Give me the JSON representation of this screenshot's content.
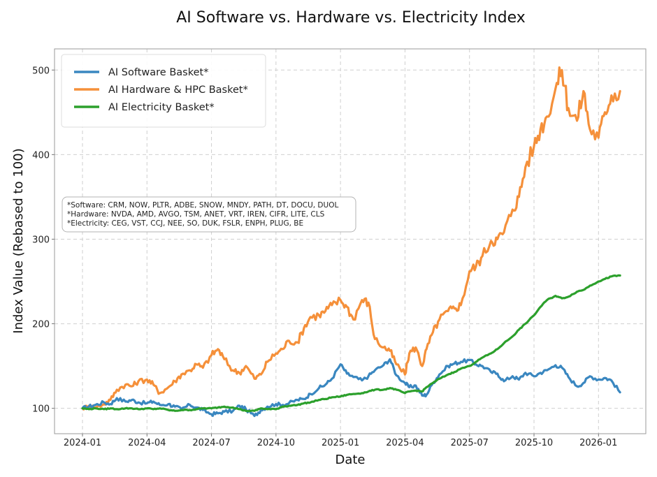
{
  "chart_data": {
    "type": "line",
    "title": "AI Software vs. Hardware vs. Electricity Index",
    "xlabel": "Date",
    "ylabel": "Index Value (Rebased to 100)",
    "x_unit": "months since 2024-01-01",
    "xlim": [
      -1.3,
      26.2
    ],
    "ylim": [
      70,
      525
    ],
    "grid": true,
    "legend_position": "top-left",
    "x_ticks": [
      {
        "value": 0,
        "label": "2024-01"
      },
      {
        "value": 3,
        "label": "2024-04"
      },
      {
        "value": 6,
        "label": "2024-07"
      },
      {
        "value": 9,
        "label": "2024-10"
      },
      {
        "value": 12,
        "label": "2025-01"
      },
      {
        "value": 15,
        "label": "2025-04"
      },
      {
        "value": 18,
        "label": "2025-07"
      },
      {
        "value": 21,
        "label": "2025-10"
      },
      {
        "value": 24,
        "label": "2026-01"
      }
    ],
    "y_ticks": [
      {
        "value": 100,
        "label": "100"
      },
      {
        "value": 200,
        "label": "200"
      },
      {
        "value": 300,
        "label": "300"
      },
      {
        "value": 400,
        "label": "400"
      },
      {
        "value": 500,
        "label": "500"
      }
    ],
    "annotation": [
      "*Software: CRM, NOW, PLTR, ADBE, SNOW, MNDY, PATH, DT, DOCU, DUOL",
      "*Hardware: NVDA, AMD, AVGO, TSM, ANET, VRT, IREN, CIFR, LITE, CLS",
      "*Electricity: CEG, VST, CCJ, NEE, SO, DUK, FSLR, ENPH, PLUG, BE"
    ],
    "series": [
      {
        "name": "AI Software Basket*",
        "color": "#3a87c0",
        "x": [
          0,
          0.3,
          0.6,
          1.0,
          1.3,
          1.6,
          2.0,
          2.3,
          2.6,
          3.0,
          3.3,
          3.6,
          4.0,
          4.3,
          4.6,
          5.0,
          5.3,
          5.6,
          6.0,
          6.3,
          6.6,
          7.0,
          7.3,
          7.6,
          8.0,
          8.3,
          8.6,
          9.0,
          9.3,
          9.6,
          10.0,
          10.3,
          10.6,
          11.0,
          11.3,
          11.6,
          12.0,
          12.3,
          12.6,
          13.0,
          13.3,
          13.6,
          14.0,
          14.3,
          14.6,
          15.0,
          15.2,
          15.5,
          15.8,
          16.0,
          16.3,
          16.6,
          17.0,
          17.3,
          17.6,
          18.0,
          18.3,
          18.6,
          19.0,
          19.3,
          19.6,
          20.0,
          20.3,
          20.6,
          21.0,
          21.3,
          21.6,
          22.0,
          22.3,
          22.6,
          23.0,
          23.3,
          23.6,
          24.0,
          24.3,
          24.6
        ],
        "values": [
          100,
          102,
          104,
          107,
          105,
          112,
          108,
          110,
          107,
          106,
          108,
          104,
          105,
          102,
          99,
          104,
          101,
          98,
          93,
          94,
          96,
          97,
          103,
          99,
          91,
          98,
          102,
          105,
          104,
          106,
          110,
          111,
          117,
          124,
          128,
          135,
          152,
          141,
          137,
          133,
          138,
          145,
          151,
          158,
          139,
          130,
          125,
          127,
          115,
          116,
          130,
          140,
          150,
          153,
          155,
          157,
          152,
          150,
          143,
          141,
          132,
          138,
          134,
          142,
          138,
          142,
          145,
          151,
          148,
          137,
          126,
          130,
          138,
          134,
          136,
          133
        ],
        "values_end": 119
      },
      {
        "name": "AI Hardware & HPC Basket*",
        "color": "#f5903a",
        "x": [
          0,
          0.3,
          0.6,
          1.0,
          1.3,
          1.6,
          2.0,
          2.3,
          2.6,
          3.0,
          3.3,
          3.6,
          4.0,
          4.3,
          4.6,
          5.0,
          5.3,
          5.6,
          6.0,
          6.3,
          6.6,
          7.0,
          7.3,
          7.6,
          8.0,
          8.3,
          8.6,
          9.0,
          9.3,
          9.6,
          10.0,
          10.3,
          10.6,
          11.0,
          11.3,
          11.6,
          12.0,
          12.3,
          12.6,
          13.0,
          13.3,
          13.6,
          14.0,
          14.3,
          14.6,
          15.0,
          15.2,
          15.5,
          15.8,
          16.0,
          16.3,
          16.6,
          17.0,
          17.3,
          17.6,
          18.0,
          18.3,
          18.6,
          19.0,
          19.3,
          19.6,
          20.0,
          20.3,
          20.6,
          21.0,
          21.3,
          21.6,
          22.0,
          22.3,
          22.6,
          23.0,
          23.3,
          23.6,
          24.0,
          24.3,
          24.6
        ],
        "values": [
          100,
          103,
          101,
          105,
          110,
          122,
          128,
          126,
          132,
          134,
          128,
          118,
          125,
          132,
          140,
          145,
          152,
          148,
          163,
          170,
          158,
          145,
          142,
          150,
          135,
          140,
          155,
          165,
          170,
          180,
          178,
          195,
          208,
          210,
          215,
          222,
          228,
          220,
          205,
          228,
          225,
          182,
          172,
          168,
          152,
          140,
          165,
          172,
          150,
          170,
          190,
          205,
          215,
          218,
          222,
          262,
          268,
          280,
          298,
          300,
          308,
          335,
          350,
          385,
          410,
          430,
          445,
          478,
          500,
          455,
          440,
          475,
          430,
          420,
          450,
          470
        ],
        "values_end": 475
      },
      {
        "name": "AI Electricity Basket*",
        "color": "#2ca02c",
        "x": [
          0,
          0.3,
          0.6,
          1.0,
          1.3,
          1.6,
          2.0,
          2.3,
          2.6,
          3.0,
          3.3,
          3.6,
          4.0,
          4.3,
          4.6,
          5.0,
          5.3,
          5.6,
          6.0,
          6.3,
          6.6,
          7.0,
          7.3,
          7.6,
          8.0,
          8.3,
          8.6,
          9.0,
          9.3,
          9.6,
          10.0,
          10.3,
          10.6,
          11.0,
          11.3,
          11.6,
          12.0,
          12.3,
          12.6,
          13.0,
          13.3,
          13.6,
          14.0,
          14.3,
          14.6,
          15.0,
          15.2,
          15.5,
          15.8,
          16.0,
          16.3,
          16.6,
          17.0,
          17.3,
          17.6,
          18.0,
          18.3,
          18.6,
          19.0,
          19.3,
          19.6,
          20.0,
          20.3,
          20.6,
          21.0,
          21.3,
          21.6,
          22.0,
          22.3,
          22.6,
          23.0,
          23.3,
          23.6,
          24.0,
          24.3,
          24.6
        ],
        "values": [
          100,
          99,
          100,
          99,
          100,
          99,
          100,
          100,
          99,
          100,
          99,
          100,
          98,
          97,
          98,
          98,
          99,
          100,
          100,
          101,
          102,
          101,
          99,
          97,
          97,
          100,
          99,
          99,
          102,
          103,
          104,
          106,
          107,
          110,
          111,
          113,
          114,
          116,
          117,
          118,
          120,
          122,
          122,
          124,
          122,
          118,
          120,
          121,
          120,
          125,
          130,
          135,
          140,
          143,
          147,
          150,
          155,
          160,
          165,
          170,
          177,
          185,
          193,
          200,
          210,
          220,
          228,
          233,
          230,
          232,
          238,
          240,
          245,
          250,
          253,
          256
        ],
        "values_end": 257
      }
    ]
  }
}
